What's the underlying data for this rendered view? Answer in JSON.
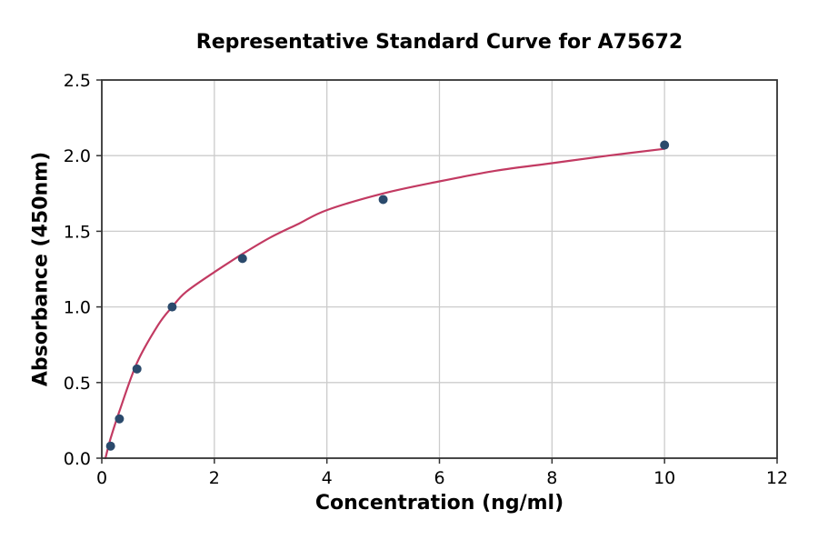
{
  "chart_data": {
    "type": "scatter",
    "title": "Representative Standard Curve for A75672",
    "xlabel": "Concentration (ng/ml)",
    "ylabel": "Absorbance (450nm)",
    "xlim": [
      0,
      12
    ],
    "ylim": [
      0,
      2.5
    ],
    "xticks": [
      0,
      2,
      4,
      6,
      8,
      10,
      12
    ],
    "xtick_labels": [
      "0",
      "2",
      "4",
      "6",
      "8",
      "10",
      "12"
    ],
    "yticks": [
      0,
      0.5,
      1.0,
      1.5,
      2.0,
      2.5
    ],
    "ytick_labels": [
      "0.0",
      "0.5",
      "1.0",
      "1.5",
      "2.0",
      "2.5"
    ],
    "grid": true,
    "legend": null,
    "series": [
      {
        "name": "standard-points",
        "type": "scatter",
        "color": "#2b4a6c",
        "marker": "circle",
        "marker_radius": 5,
        "x": [
          0.156,
          0.313,
          0.625,
          1.25,
          2.5,
          5,
          10
        ],
        "y": [
          0.08,
          0.26,
          0.59,
          1.0,
          1.32,
          1.71,
          2.07
        ]
      },
      {
        "name": "fit-curve",
        "type": "line",
        "color": "#c23a62",
        "line_width": 2.2,
        "x": [
          0.065,
          0.156,
          0.313,
          0.625,
          1.0,
          1.25,
          1.5,
          2.0,
          2.5,
          3.0,
          3.5,
          4.0,
          5.0,
          6.0,
          7.0,
          8.0,
          9.0,
          10.0
        ],
        "y": [
          0.0,
          0.13,
          0.31,
          0.63,
          0.88,
          1.0,
          1.1,
          1.23,
          1.35,
          1.46,
          1.55,
          1.64,
          1.75,
          1.83,
          1.9,
          1.95,
          2.0,
          2.045
        ]
      }
    ],
    "colors": {
      "background": "#ffffff",
      "axis": "#333333",
      "grid": "#cccccc",
      "text": "#000000",
      "point": "#2b4a6c",
      "curve": "#c23a62"
    }
  }
}
